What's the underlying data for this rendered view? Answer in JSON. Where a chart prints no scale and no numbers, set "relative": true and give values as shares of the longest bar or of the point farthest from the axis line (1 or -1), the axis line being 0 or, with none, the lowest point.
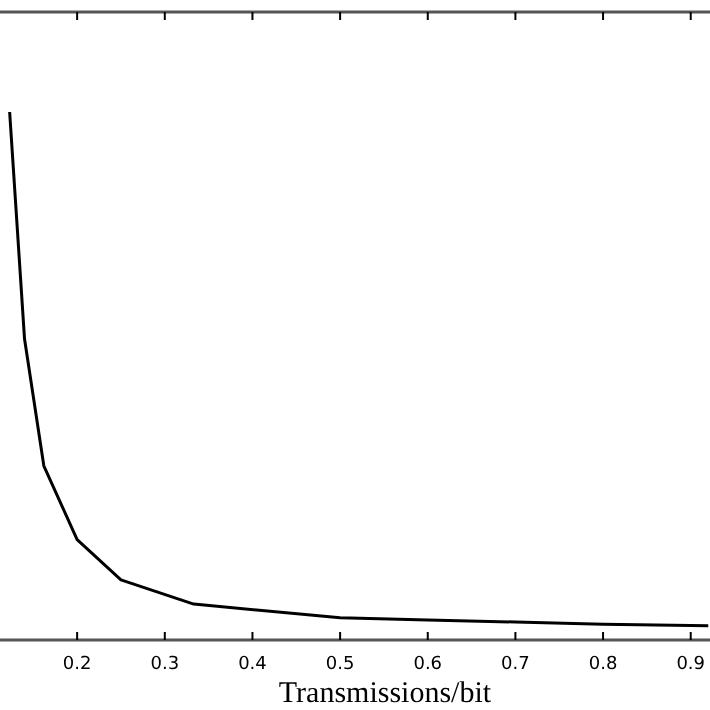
{
  "chart_data": {
    "type": "line",
    "xlabel": "Transmissions/bit",
    "relative": true,
    "x": [
      0.123,
      0.14,
      0.162,
      0.2,
      0.25,
      0.333,
      0.5,
      0.6,
      0.7,
      0.8,
      0.92
    ],
    "series": [
      {
        "color": "#000000",
        "values": [
          1,
          0.57,
          0.33,
          0.19,
          0.114,
          0.068,
          0.042,
          0.038,
          0.034,
          0.03,
          0.027
        ]
      }
    ],
    "xlim": [
      0.112,
      0.922
    ],
    "xticks": [
      0.2,
      0.3,
      0.4,
      0.5,
      0.6,
      0.7,
      0.8,
      0.9
    ],
    "grid": false,
    "marker": "none",
    "line_style": "solid"
  }
}
